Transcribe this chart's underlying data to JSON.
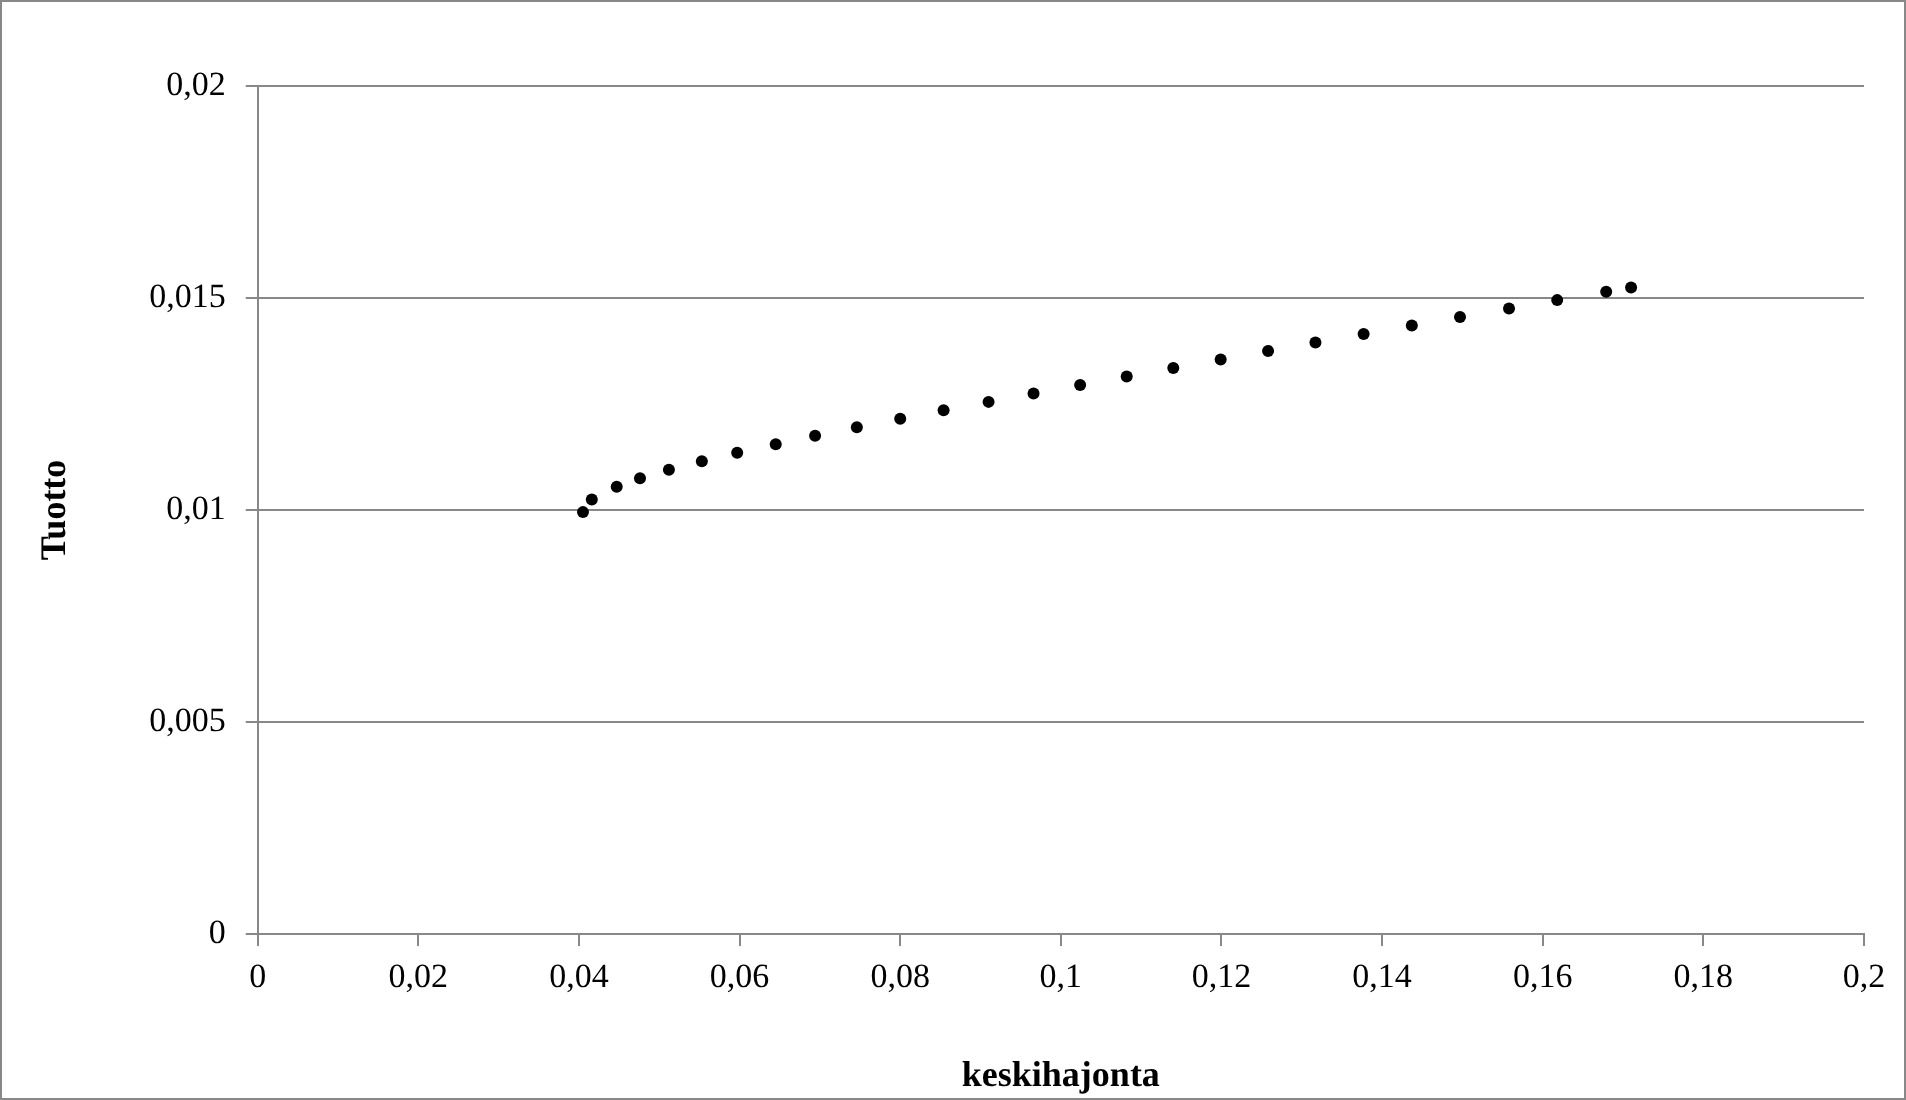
{
  "chart_data": {
    "type": "scatter",
    "xlabel": "keskihajonta",
    "ylabel": "Tuotto",
    "x": [
      0.0405,
      0.0416,
      0.0447,
      0.0476,
      0.0512,
      0.0553,
      0.0597,
      0.0645,
      0.0694,
      0.0746,
      0.08,
      0.0854,
      0.091,
      0.0966,
      0.1024,
      0.1082,
      0.114,
      0.1199,
      0.1258,
      0.1317,
      0.1377,
      0.1437,
      0.1497,
      0.1558,
      0.1618,
      0.1679,
      0.171
    ],
    "series": [
      {
        "color": "#000000",
        "values": [
          0.00995,
          0.01025,
          0.01055,
          0.01075,
          0.01095,
          0.01115,
          0.01135,
          0.01155,
          0.01175,
          0.01195,
          0.01215,
          0.01235,
          0.01255,
          0.01275,
          0.01295,
          0.01315,
          0.01335,
          0.01355,
          0.01375,
          0.01395,
          0.01415,
          0.01435,
          0.01455,
          0.01475,
          0.01495,
          0.01515,
          0.01525
        ]
      }
    ],
    "xlim": [
      0,
      0.2
    ],
    "xticks": [
      0,
      {
        "value": 0.02,
        "label": "0,02"
      },
      {
        "value": 0.04,
        "label": "0,04"
      },
      {
        "value": 0.06,
        "label": "0,06"
      },
      {
        "value": 0.08,
        "label": "0,08"
      },
      {
        "value": 0.1,
        "label": "0,1"
      },
      {
        "value": 0.12,
        "label": "0,12"
      },
      {
        "value": 0.14,
        "label": "0,14"
      },
      {
        "value": 0.16,
        "label": "0,16"
      },
      {
        "value": 0.18,
        "label": "0,18"
      },
      {
        "value": 0.2,
        "label": "0,2"
      }
    ],
    "ylim": [
      0,
      0.02
    ],
    "yticks": [
      0,
      {
        "value": 0.005,
        "label": "0,005"
      },
      {
        "value": 0.01,
        "label": "0,01"
      },
      {
        "value": 0.015,
        "label": "0,015"
      },
      {
        "value": 0.02,
        "label": "0,02"
      }
    ],
    "grid": "y",
    "marker": "circle",
    "legend": false
  }
}
